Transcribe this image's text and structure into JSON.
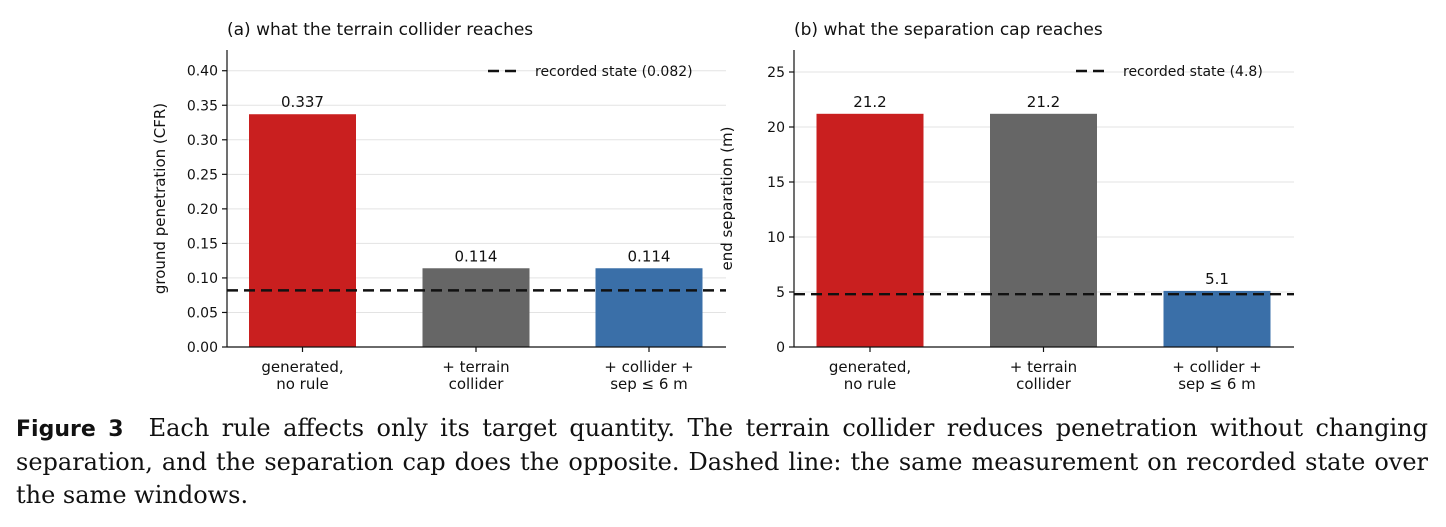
{
  "chart_data": [
    {
      "type": "bar",
      "title": "(a) what the terrain collider reaches",
      "xlabel": "",
      "ylabel": "ground penetration (CFR)",
      "categories": [
        [
          "generated,",
          "no rule"
        ],
        [
          "+ terrain",
          "collider"
        ],
        [
          "+ collider +",
          "sep ≤ 6 m"
        ]
      ],
      "values": [
        0.337,
        0.114,
        0.114
      ],
      "value_labels": [
        "0.337",
        "0.114",
        "0.114"
      ],
      "bar_colors": [
        "#c91f1f",
        "#666666",
        "#3a6fa8"
      ],
      "ylim": [
        0,
        0.43
      ],
      "yticks": [
        0,
        0.05,
        0.1,
        0.15,
        0.2,
        0.25,
        0.3,
        0.35,
        0.4
      ],
      "ytick_labels": [
        "0.00",
        "0.05",
        "0.10",
        "0.15",
        "0.20",
        "0.25",
        "0.30",
        "0.35",
        "0.40"
      ],
      "reference_line": {
        "value": 0.082,
        "label": "recorded state (0.082)",
        "style": "dashed"
      },
      "legend_position": "top-right",
      "grid": "horizontal"
    },
    {
      "type": "bar",
      "title": "(b) what the separation cap reaches",
      "xlabel": "",
      "ylabel": "end separation (m)",
      "categories": [
        [
          "generated,",
          "no rule"
        ],
        [
          "+ terrain",
          "collider"
        ],
        [
          "+ collider +",
          "sep ≤ 6 m"
        ]
      ],
      "values": [
        21.2,
        21.2,
        5.1
      ],
      "value_labels": [
        "21.2",
        "21.2",
        "5.1"
      ],
      "bar_colors": [
        "#c91f1f",
        "#666666",
        "#3a6fa8"
      ],
      "ylim": [
        0,
        27
      ],
      "yticks": [
        0,
        5,
        10,
        15,
        20,
        25
      ],
      "ytick_labels": [
        "0",
        "5",
        "10",
        "15",
        "20",
        "25"
      ],
      "reference_line": {
        "value": 4.8,
        "label": "recorded state (4.8)",
        "style": "dashed"
      },
      "legend_position": "top-right",
      "grid": "horizontal"
    }
  ],
  "caption": {
    "label": "Figure 3",
    "text": "Each rule affects only its target quantity. The terrain collider reduces penetration without changing separation, and the separation cap does the opposite.  Dashed line: the same measurement on recorded state over the same windows."
  }
}
